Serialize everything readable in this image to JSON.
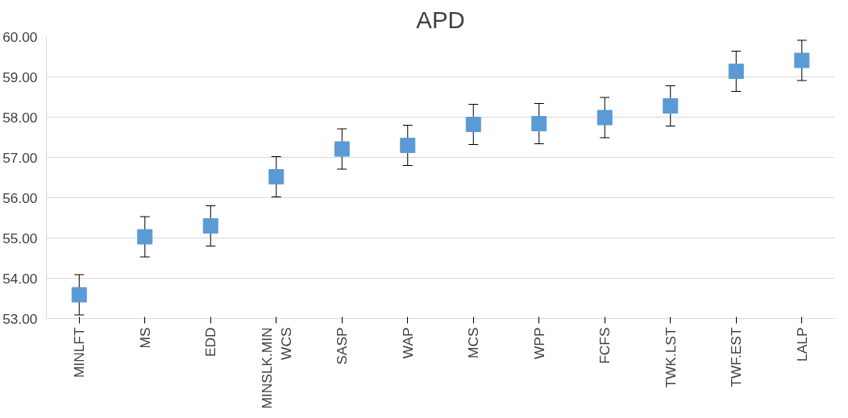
{
  "chart_data": {
    "type": "scatter",
    "title": "APD",
    "categories": [
      "MINLFT",
      "MS",
      "EDD",
      "MINSLK.MIN WCS",
      "SASP",
      "WAP",
      "MCS",
      "WPP",
      "FCFS",
      "TWK.LST",
      "TWF.EST",
      "LALP"
    ],
    "values": [
      53.59,
      55.03,
      55.3,
      56.52,
      57.21,
      57.3,
      57.82,
      57.84,
      57.99,
      58.28,
      59.14,
      59.41
    ],
    "errors": [
      0.5,
      0.5,
      0.5,
      0.5,
      0.5,
      0.5,
      0.5,
      0.5,
      0.5,
      0.5,
      0.5,
      0.5
    ],
    "color": "#5b9bd5",
    "marker": "square",
    "ylim": [
      53,
      60
    ],
    "yticks": [
      {
        "value": 53,
        "label": "53.00"
      },
      {
        "value": 54,
        "label": "54.00"
      },
      {
        "value": 55,
        "label": "55.00"
      },
      {
        "value": 56,
        "label": "56.00"
      },
      {
        "value": 57,
        "label": "57.00"
      },
      {
        "value": 58,
        "label": "58.00"
      },
      {
        "value": 59,
        "label": "59.00"
      },
      {
        "value": 60,
        "label": "60.00"
      }
    ],
    "grid": "y"
  }
}
